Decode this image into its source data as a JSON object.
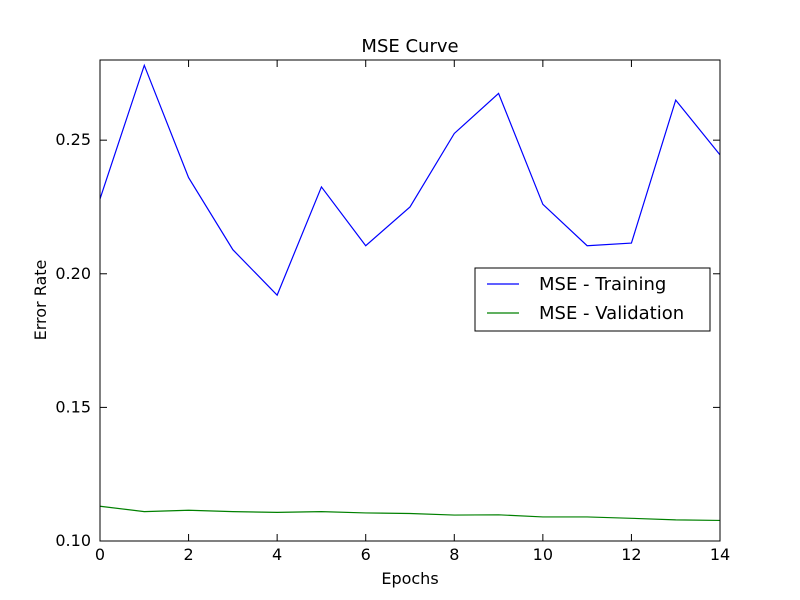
{
  "chart_data": {
    "type": "line",
    "title": "MSE Curve",
    "xlabel": "Epochs",
    "ylabel": "Error Rate",
    "xlim": [
      0,
      14
    ],
    "ylim": [
      0.1,
      0.28
    ],
    "x_ticks": [
      0,
      2,
      4,
      6,
      8,
      10,
      12,
      14
    ],
    "x_tick_labels": [
      "0",
      "2",
      "4",
      "6",
      "8",
      "10",
      "12",
      "14"
    ],
    "y_ticks": [
      0.1,
      0.15,
      0.2,
      0.25
    ],
    "y_tick_labels": [
      "0.10",
      "0.15",
      "0.20",
      "0.25"
    ],
    "grid": false,
    "legend_position": "right-center",
    "x": [
      0,
      1,
      2,
      3,
      4,
      5,
      6,
      7,
      8,
      9,
      10,
      11,
      12,
      13,
      14
    ],
    "series": [
      {
        "name": "MSE - Training",
        "color": "#0000ff",
        "values": [
          0.228,
          0.278,
          0.236,
          0.209,
          0.192,
          0.2325,
          0.2105,
          0.225,
          0.2525,
          0.2675,
          0.226,
          0.2105,
          0.2115,
          0.265,
          0.2445
        ]
      },
      {
        "name": "MSE - Validation",
        "color": "#008000",
        "values": [
          0.113,
          0.111,
          0.1115,
          0.111,
          0.1107,
          0.111,
          0.1105,
          0.1103,
          0.1097,
          0.1098,
          0.109,
          0.109,
          0.1085,
          0.1079,
          0.1077
        ]
      }
    ]
  }
}
